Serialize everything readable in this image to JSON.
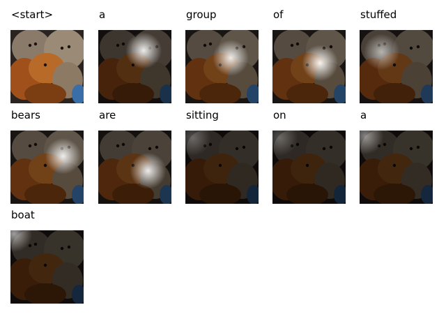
{
  "tokens": [
    {
      "word": "<start>",
      "bright": 1.0,
      "spot": [
        0.5,
        0.5,
        0.0
      ]
    },
    {
      "word": "a",
      "bright": 0.35,
      "spot": [
        0.62,
        0.28,
        0.9
      ]
    },
    {
      "word": "group",
      "bright": 0.55,
      "spot": [
        0.62,
        0.38,
        0.9
      ]
    },
    {
      "word": "of",
      "bright": 0.55,
      "spot": [
        0.65,
        0.45,
        0.95
      ]
    },
    {
      "word": "stuffed",
      "bright": 0.45,
      "spot": [
        0.3,
        0.3,
        0.6
      ]
    },
    {
      "word": "bears",
      "bright": 0.55,
      "spot": [
        0.72,
        0.35,
        0.9
      ]
    },
    {
      "word": "are",
      "bright": 0.4,
      "spot": [
        0.68,
        0.55,
        0.9
      ]
    },
    {
      "word": "sitting",
      "bright": 0.22,
      "spot": [
        0.1,
        0.1,
        0.3
      ]
    },
    {
      "word": "on",
      "bright": 0.22,
      "spot": [
        0.1,
        0.1,
        0.3
      ]
    },
    {
      "word": "a",
      "bright": 0.25,
      "spot": [
        0.08,
        0.08,
        0.5
      ]
    },
    {
      "word": "boat",
      "bright": 0.25,
      "spot": [
        0.05,
        0.05,
        0.6
      ]
    }
  ]
}
